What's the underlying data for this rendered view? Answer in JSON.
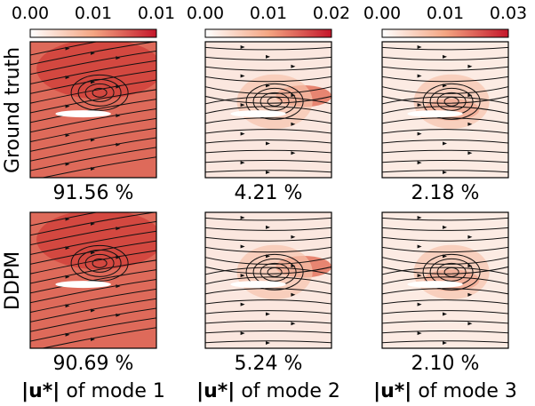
{
  "colorbars": [
    {
      "ticks": [
        "0.00",
        "0.01",
        "0.01"
      ],
      "max_color": "#c4162a"
    },
    {
      "ticks": [
        "0.00",
        "0.01",
        "0.02"
      ],
      "max_color": "#c4162a"
    },
    {
      "ticks": [
        "0.00",
        "0.01",
        "0.03"
      ],
      "max_color": "#c4162a"
    }
  ],
  "rows": [
    {
      "label": "Ground truth",
      "percentages": [
        "91.56 %",
        "4.21 %",
        "2.18 %"
      ]
    },
    {
      "label": "DDPM",
      "percentages": [
        "90.69 %",
        "5.24 %",
        "2.10 %"
      ]
    }
  ],
  "column_labels": [
    {
      "symbol": "|u*|",
      "text": "of mode 1"
    },
    {
      "symbol": "|u*|",
      "text": "of mode 2"
    },
    {
      "symbol": "|u*|",
      "text": "of mode 3"
    }
  ],
  "colormap": {
    "low": "#ffffff",
    "mid": "#f4a582",
    "high": "#c4162a"
  },
  "chart_data": {
    "type": "heatmap",
    "description_rows": [
      "Ground truth",
      "DDPM"
    ],
    "columns": [
      "|u*| of mode 1",
      "|u*| of mode 2",
      "|u*| of mode 3"
    ],
    "energy_fraction": {
      "Ground truth": [
        91.56,
        4.21,
        2.18
      ],
      "DDPM": [
        90.69,
        5.24,
        2.1
      ]
    },
    "colorbar_ranges": [
      [
        0.0,
        0.01
      ],
      [
        0.0,
        0.02
      ],
      [
        0.0,
        0.03
      ]
    ],
    "colorbar_tick_labels": [
      [
        "0.00",
        "0.01",
        "0.01"
      ],
      [
        "0.00",
        "0.01",
        "0.02"
      ],
      [
        "0.00",
        "0.01",
        "0.03"
      ]
    ]
  }
}
